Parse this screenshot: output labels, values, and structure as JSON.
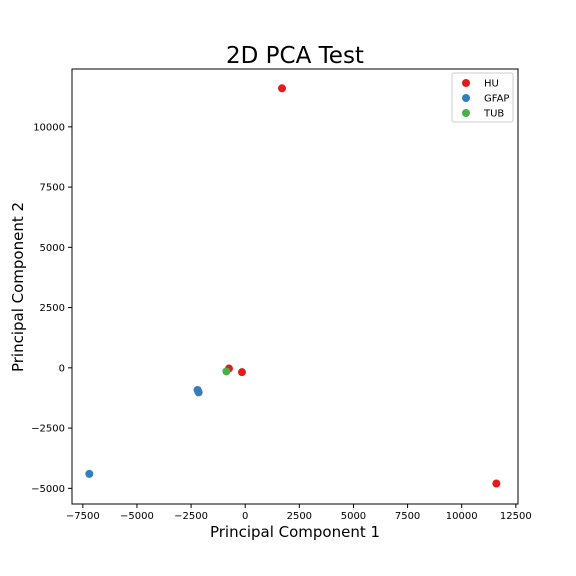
{
  "chart_data": {
    "type": "scatter",
    "title": "2D PCA Test",
    "xlabel": "Principal Component 1",
    "ylabel": "Principal Component 2",
    "xlim": [
      -8000,
      12600
    ],
    "ylim": [
      -5650,
      12400
    ],
    "xticks": [
      -7500,
      -5000,
      -2500,
      0,
      2500,
      5000,
      7500,
      10000,
      12500
    ],
    "yticks": [
      -5000,
      -2500,
      0,
      2500,
      5000,
      7500,
      10000
    ],
    "grid": false,
    "legend_position": "top-right",
    "series": [
      {
        "name": "HU",
        "color": "#e41a1c",
        "points": [
          {
            "x": 1700,
            "y": 11600
          },
          {
            "x": -750,
            "y": -30
          },
          {
            "x": -150,
            "y": -180
          },
          {
            "x": 11600,
            "y": -4800
          }
        ]
      },
      {
        "name": "GFAP",
        "color": "#377eb8",
        "points": [
          {
            "x": -7200,
            "y": -4400
          },
          {
            "x": -2200,
            "y": -920
          },
          {
            "x": -2150,
            "y": -1020
          },
          {
            "x": -2170,
            "y": -980
          }
        ]
      },
      {
        "name": "TUB",
        "color": "#4daf4a",
        "points": [
          {
            "x": -870,
            "y": -150
          }
        ]
      }
    ]
  }
}
